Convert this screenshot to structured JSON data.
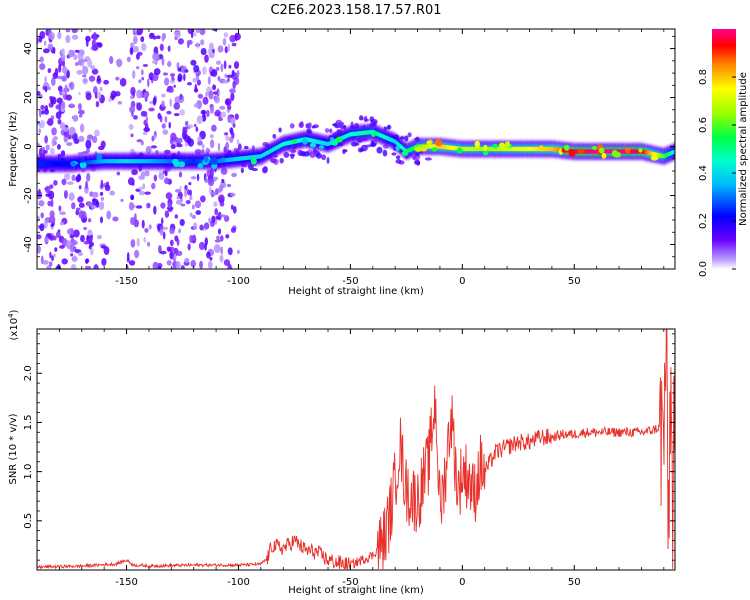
{
  "title": "C2E6.2023.158.17.57.R01",
  "colors": {
    "line": "#e8312a",
    "ridge_low": "#1b00ff",
    "ridge_high": "#ff0010",
    "speckle": "#a46bff"
  },
  "chart_data": [
    {
      "type": "heatmap",
      "xlabel": "Height of straight line (km)",
      "ylabel": "Frequency (Hz)",
      "xlim": [
        -190,
        95
      ],
      "ylim": [
        -50,
        48
      ],
      "xticks": [
        -150,
        -100,
        -50,
        0,
        50
      ],
      "yticks": [
        -40,
        -20,
        0,
        20,
        40
      ],
      "colorbar": {
        "label": "Normalized spectral amplitude",
        "range": [
          0.0,
          1.0
        ],
        "ticks": [
          0.0,
          0.2,
          0.4,
          0.6,
          0.8
        ]
      },
      "ridge_x": [
        -190,
        -175,
        -160,
        -150,
        -140,
        -130,
        -120,
        -110,
        -100,
        -90,
        -80,
        -70,
        -60,
        -50,
        -40,
        -35,
        -30,
        -25,
        -20,
        -10,
        0,
        10,
        20,
        30,
        40,
        50,
        60,
        70,
        80,
        90,
        95
      ],
      "ridge_frequency": [
        -7,
        -7,
        -6,
        -6,
        -6,
        -6,
        -6,
        -6,
        -5,
        -4,
        1,
        3,
        1,
        5,
        6,
        4,
        2,
        -2,
        0,
        0,
        -1,
        -1,
        -1,
        -1,
        -1,
        -2,
        -2,
        -2,
        -2,
        -4,
        -2
      ],
      "ridge_amplitude": [
        0.25,
        0.2,
        0.35,
        0.4,
        0.35,
        0.3,
        0.25,
        0.3,
        0.4,
        0.4,
        0.45,
        0.45,
        0.4,
        0.45,
        0.5,
        0.45,
        0.4,
        0.5,
        0.6,
        0.8,
        0.7,
        0.65,
        0.7,
        0.75,
        0.8,
        0.95,
        1.0,
        1.0,
        0.95,
        0.6,
        0.4
      ]
    },
    {
      "type": "line",
      "xlabel": "Height of straight line (km)",
      "ylabel": "SNR (10 * v/v)",
      "y_multiplier": "(x10",
      "y_multiplier_exp": "4",
      "y_multiplier_close": ")",
      "xlim": [
        -190,
        95
      ],
      "ylim": [
        0,
        2.45
      ],
      "xticks": [
        -150,
        -100,
        -50,
        0,
        50
      ],
      "yticks": [
        0.5,
        1.0,
        1.5,
        2.0
      ],
      "ytick_labels": [
        "0.5",
        "1.0",
        "1.5",
        "2.0"
      ],
      "series": [
        {
          "x": [
            -190,
            -170,
            -155,
            -150,
            -147,
            -140,
            -120,
            -100,
            -90,
            -87,
            -85,
            -80,
            -75,
            -70,
            -65,
            -60,
            -55,
            -50,
            -45,
            -40,
            -35,
            -32,
            -30,
            -28,
            -25,
            -20,
            -15,
            -12,
            -10,
            -8,
            -5,
            -2,
            0,
            3,
            5,
            8,
            10,
            15,
            20,
            25,
            30,
            35,
            40,
            45,
            50,
            55,
            60,
            65,
            70,
            75,
            80,
            85,
            88,
            90,
            91,
            92,
            93,
            94,
            95
          ],
          "y": [
            0.03,
            0.04,
            0.06,
            0.1,
            0.05,
            0.04,
            0.05,
            0.05,
            0.06,
            0.12,
            0.25,
            0.22,
            0.3,
            0.2,
            0.18,
            0.1,
            0.07,
            0.05,
            0.1,
            0.15,
            0.3,
            0.6,
            0.9,
            1.3,
            0.8,
            0.7,
            1.1,
            1.75,
            0.6,
            0.9,
            1.6,
            0.8,
            1.0,
            0.95,
            0.75,
            1.05,
            1.0,
            1.2,
            1.25,
            1.3,
            1.3,
            1.35,
            1.35,
            1.38,
            1.38,
            1.4,
            1.4,
            1.4,
            1.4,
            1.4,
            1.4,
            1.42,
            1.45,
            1.3,
            2.45,
            0.2,
            2.0,
            0.4,
            2.3
          ]
        }
      ]
    }
  ]
}
